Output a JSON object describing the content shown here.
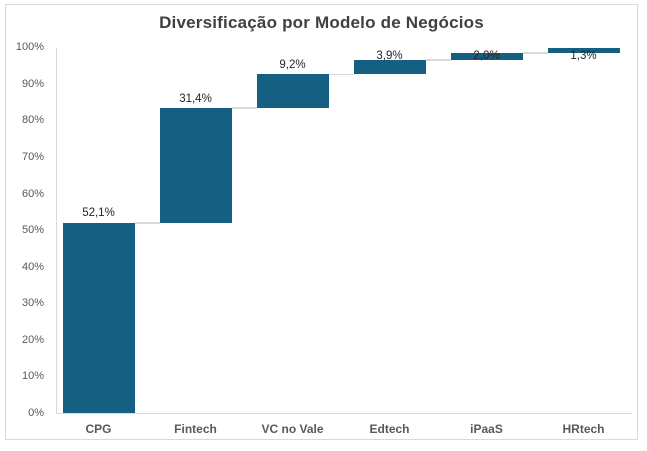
{
  "chart_data": {
    "type": "bar",
    "subtype": "waterfall",
    "title": "Diversificação por Modelo de Negócios",
    "categories": [
      "CPG",
      "Fintech",
      "VC no Vale",
      "Edtech",
      "iPaaS",
      "HRtech"
    ],
    "values": [
      52.1,
      31.4,
      9.2,
      3.9,
      2.0,
      1.3
    ],
    "value_labels": [
      "52,1%",
      "31,4%",
      "9,2%",
      "3,9%",
      "2,0%",
      "1,3%"
    ],
    "cumulative": [
      52.1,
      83.5,
      92.7,
      96.6,
      98.6,
      99.9
    ],
    "xlabel": "",
    "ylabel": "",
    "ylim": [
      0,
      100
    ],
    "y_ticks": [
      "0%",
      "10%",
      "20%",
      "30%",
      "40%",
      "50%",
      "60%",
      "70%",
      "80%",
      "90%",
      "100%"
    ],
    "y_tick_values": [
      0,
      10,
      20,
      30,
      40,
      50,
      60,
      70,
      80,
      90,
      100
    ],
    "grid": false,
    "legend": "none",
    "colors": {
      "bar": "#156082",
      "axis_line": "#d9d9d9",
      "connector": "#d9d9d9",
      "title_text": "#404040",
      "tick_text": "#595959",
      "data_label_text": "#262626",
      "frame_border": "#d9d9d9"
    }
  }
}
